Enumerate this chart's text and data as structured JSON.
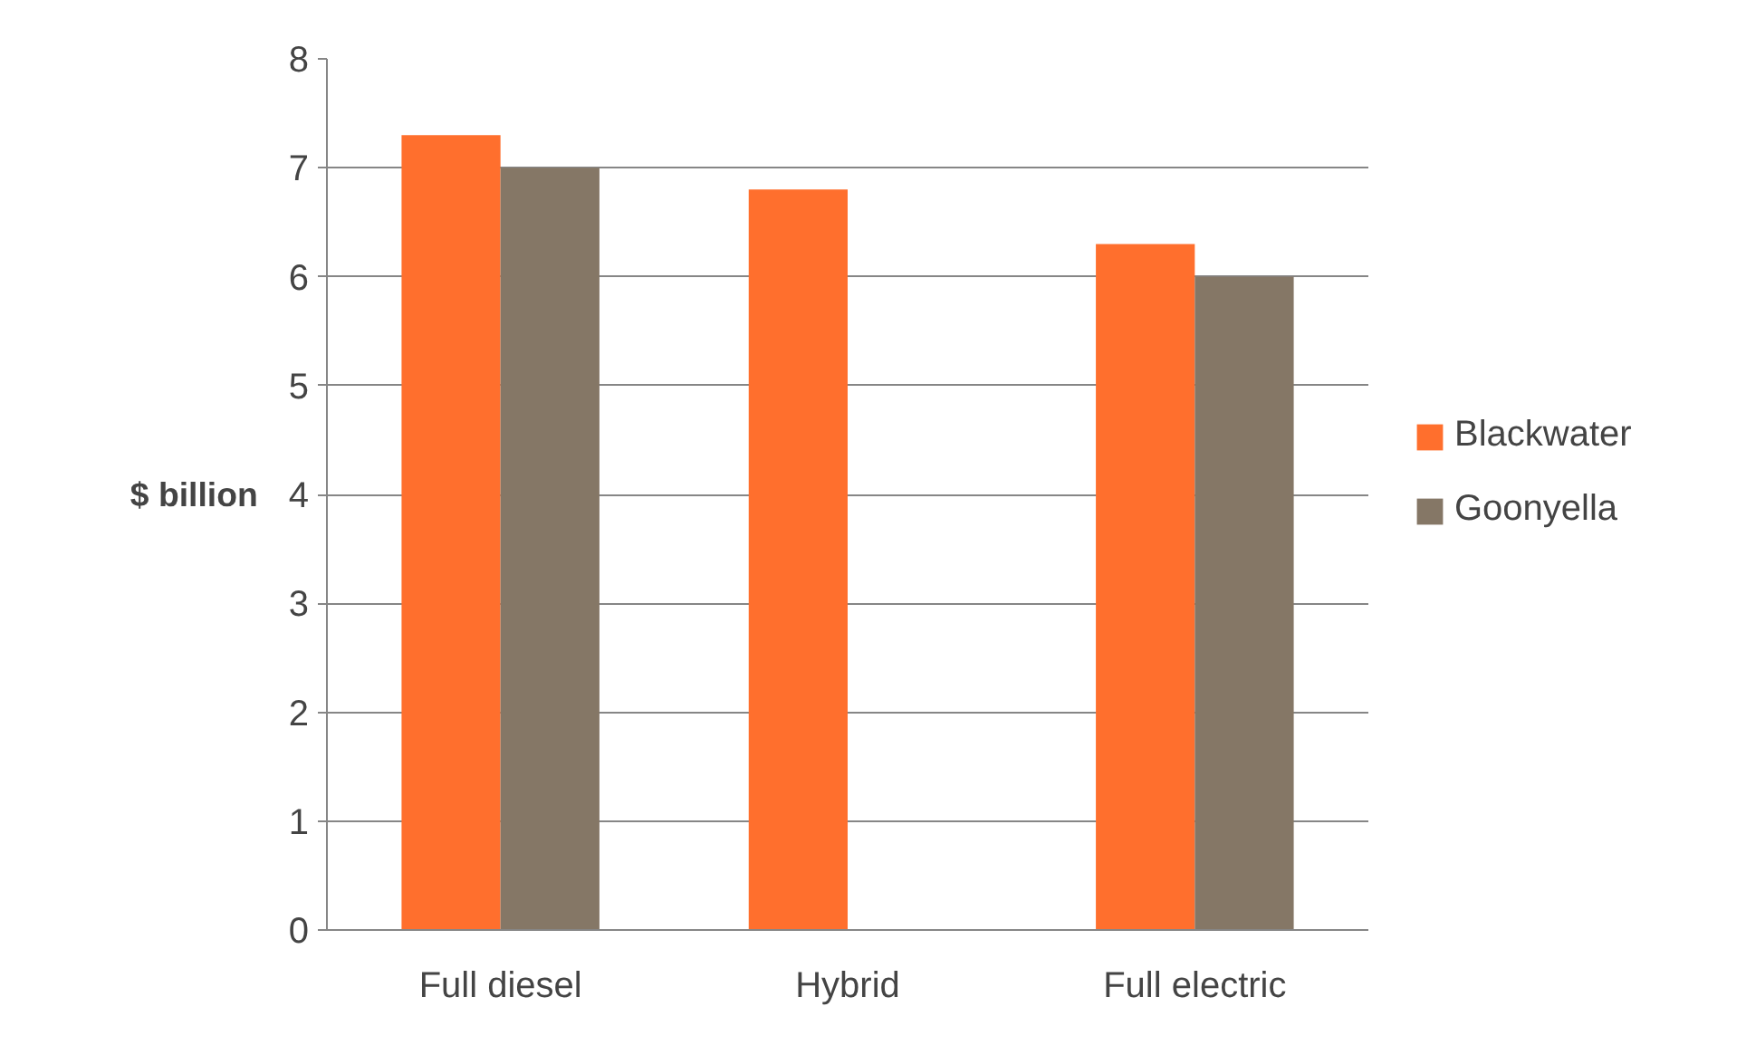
{
  "chart_data": {
    "type": "bar",
    "ylabel": "$ billion",
    "categories": [
      "Full diesel",
      "Hybrid",
      "Full electric"
    ],
    "series": [
      {
        "name": "Blackwater",
        "color": "#ff6f2d",
        "values": [
          7.3,
          6.8,
          6.3
        ]
      },
      {
        "name": "Goonyella",
        "color": "#857766",
        "values": [
          7.0,
          null,
          6.0
        ]
      }
    ],
    "ylim": [
      0,
      8
    ],
    "yticks": [
      0,
      1,
      2,
      3,
      4,
      5,
      6,
      7,
      8
    ],
    "grid": "y",
    "legend": "right"
  }
}
